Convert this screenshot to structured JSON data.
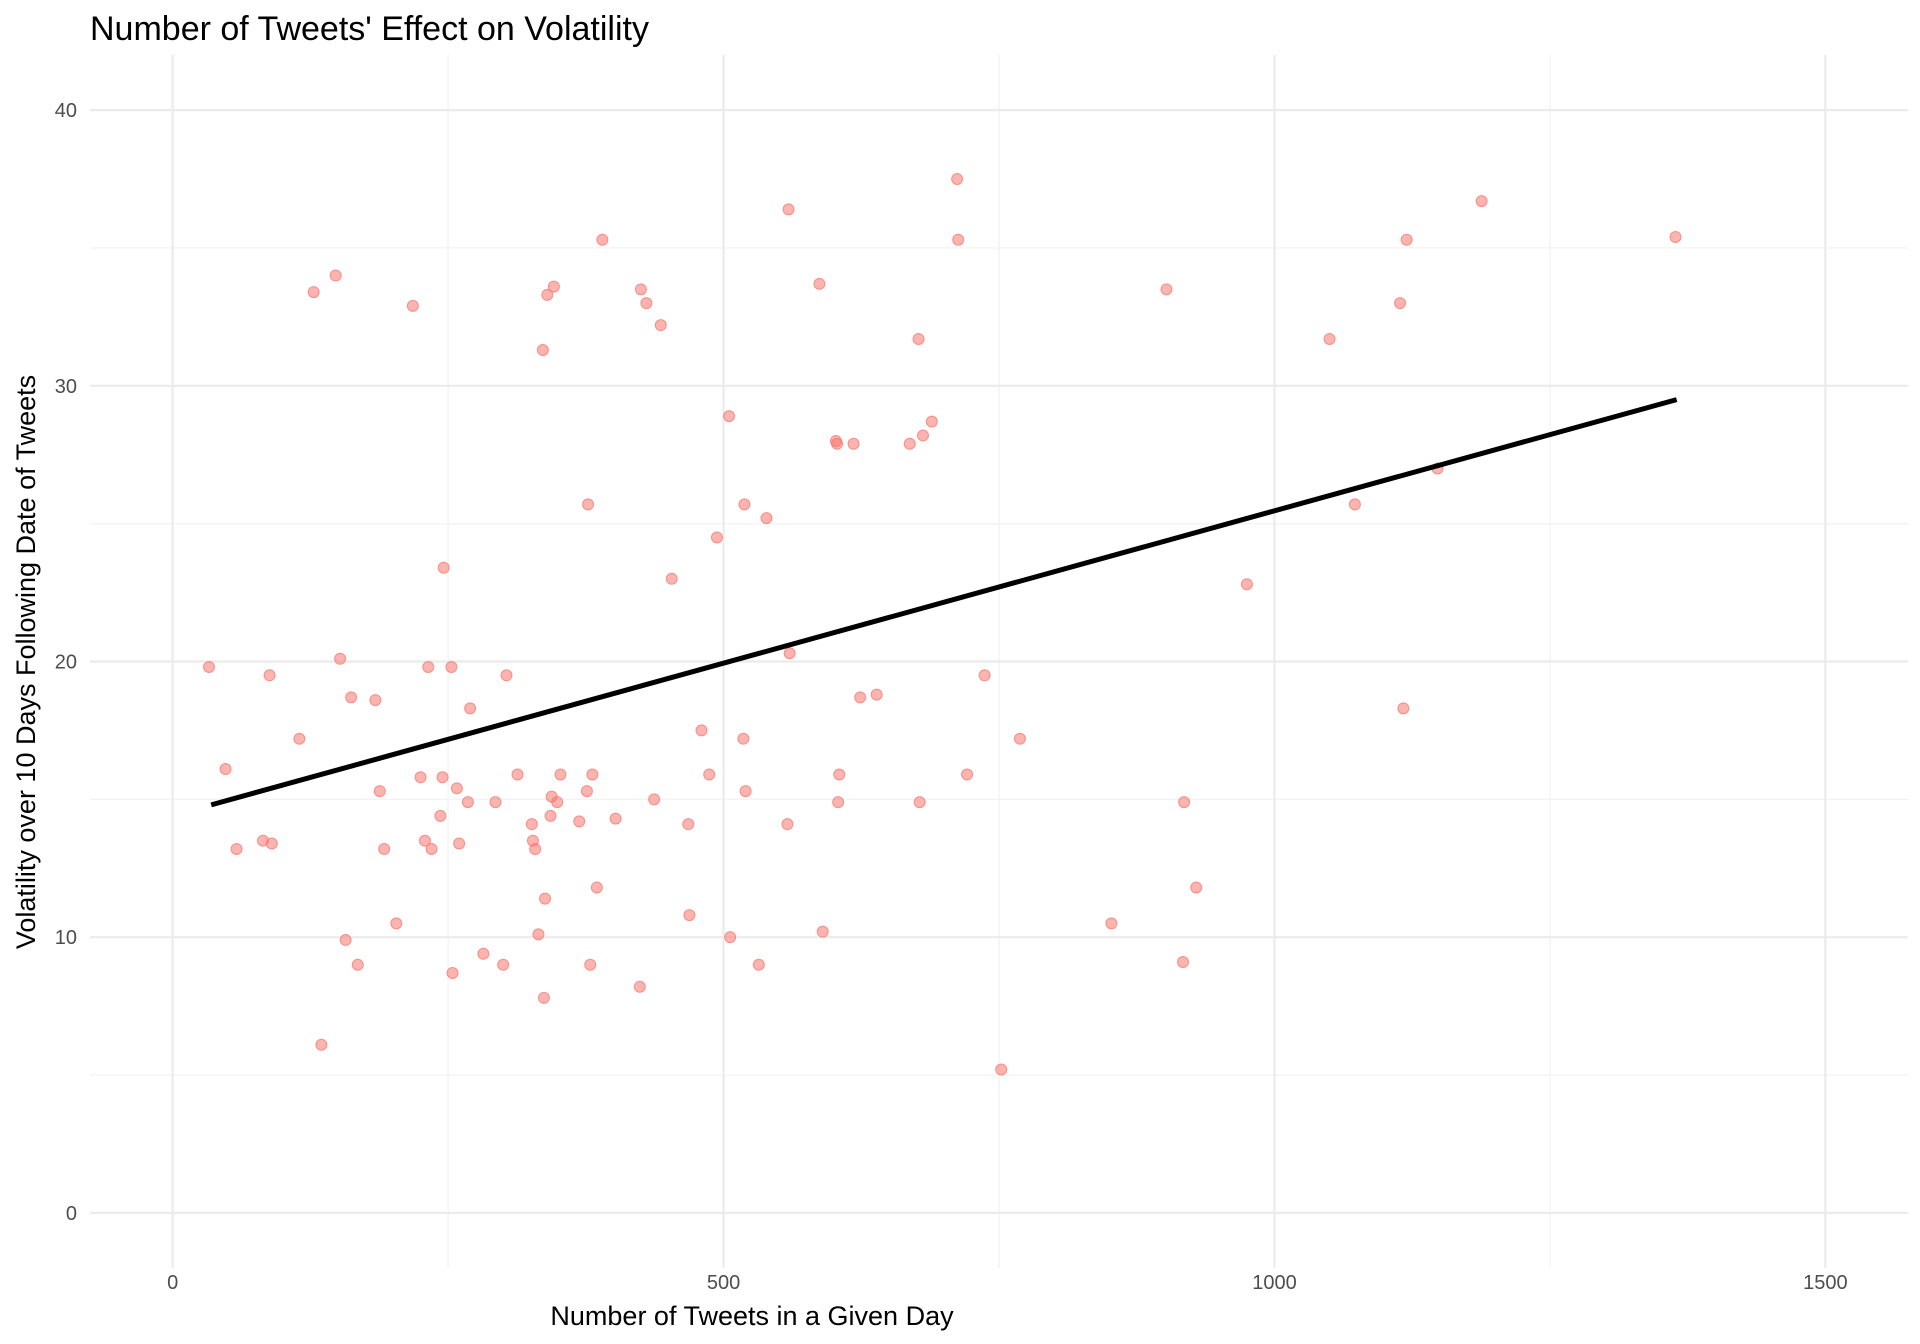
{
  "chart_data": {
    "type": "scatter",
    "title": "Number of Tweets' Effect on Volatility",
    "xlabel": "Number of Tweets in a Given Day",
    "ylabel": "Volatility over 10 Days Following Date of Tweets",
    "xlim": [
      -75,
      1575
    ],
    "ylim": [
      -2,
      42
    ],
    "x_ticks": [
      0,
      500,
      1000,
      1500
    ],
    "y_ticks": [
      0,
      10,
      20,
      30,
      40
    ],
    "grid": true,
    "legend": "none",
    "point_color": "#f8766d",
    "trend_line": {
      "x": [
        35,
        1365
      ],
      "y": [
        14.8,
        29.5
      ],
      "color": "#000000"
    },
    "points": [
      {
        "x": 33,
        "y": 19.8
      },
      {
        "x": 48,
        "y": 16.1
      },
      {
        "x": 58,
        "y": 13.2
      },
      {
        "x": 82,
        "y": 13.5
      },
      {
        "x": 88,
        "y": 19.5
      },
      {
        "x": 90,
        "y": 13.4
      },
      {
        "x": 115,
        "y": 17.2
      },
      {
        "x": 128,
        "y": 33.4
      },
      {
        "x": 135,
        "y": 6.1
      },
      {
        "x": 148,
        "y": 34.0
      },
      {
        "x": 152,
        "y": 20.1
      },
      {
        "x": 157,
        "y": 9.9
      },
      {
        "x": 162,
        "y": 18.7
      },
      {
        "x": 168,
        "y": 9.0
      },
      {
        "x": 184,
        "y": 18.6
      },
      {
        "x": 188,
        "y": 15.3
      },
      {
        "x": 192,
        "y": 13.2
      },
      {
        "x": 203,
        "y": 10.5
      },
      {
        "x": 218,
        "y": 32.9
      },
      {
        "x": 225,
        "y": 15.8
      },
      {
        "x": 229,
        "y": 13.5
      },
      {
        "x": 232,
        "y": 19.8
      },
      {
        "x": 235,
        "y": 13.2
      },
      {
        "x": 243,
        "y": 14.4
      },
      {
        "x": 245,
        "y": 15.8
      },
      {
        "x": 246,
        "y": 23.4
      },
      {
        "x": 253,
        "y": 19.8
      },
      {
        "x": 254,
        "y": 8.7
      },
      {
        "x": 258,
        "y": 15.4
      },
      {
        "x": 260,
        "y": 13.4
      },
      {
        "x": 268,
        "y": 14.9
      },
      {
        "x": 270,
        "y": 18.3
      },
      {
        "x": 282,
        "y": 9.4
      },
      {
        "x": 293,
        "y": 14.9
      },
      {
        "x": 300,
        "y": 9.0
      },
      {
        "x": 303,
        "y": 19.5
      },
      {
        "x": 313,
        "y": 15.9
      },
      {
        "x": 326,
        "y": 14.1
      },
      {
        "x": 327,
        "y": 13.5
      },
      {
        "x": 329,
        "y": 13.2
      },
      {
        "x": 332,
        "y": 10.1
      },
      {
        "x": 336,
        "y": 31.3
      },
      {
        "x": 337,
        "y": 7.8
      },
      {
        "x": 338,
        "y": 11.4
      },
      {
        "x": 340,
        "y": 33.3
      },
      {
        "x": 343,
        "y": 14.4
      },
      {
        "x": 344,
        "y": 15.1
      },
      {
        "x": 346,
        "y": 33.6
      },
      {
        "x": 349,
        "y": 14.9
      },
      {
        "x": 352,
        "y": 15.9
      },
      {
        "x": 369,
        "y": 14.2
      },
      {
        "x": 376,
        "y": 15.3
      },
      {
        "x": 377,
        "y": 25.7
      },
      {
        "x": 379,
        "y": 9.0
      },
      {
        "x": 381,
        "y": 15.9
      },
      {
        "x": 385,
        "y": 11.8
      },
      {
        "x": 390,
        "y": 35.3
      },
      {
        "x": 402,
        "y": 14.3
      },
      {
        "x": 424,
        "y": 8.2
      },
      {
        "x": 425,
        "y": 33.5
      },
      {
        "x": 430,
        "y": 33.0
      },
      {
        "x": 437,
        "y": 15.0
      },
      {
        "x": 443,
        "y": 32.2
      },
      {
        "x": 453,
        "y": 23.0
      },
      {
        "x": 468,
        "y": 14.1
      },
      {
        "x": 469,
        "y": 10.8
      },
      {
        "x": 480,
        "y": 17.5
      },
      {
        "x": 487,
        "y": 15.9
      },
      {
        "x": 494,
        "y": 24.5
      },
      {
        "x": 505,
        "y": 28.9
      },
      {
        "x": 506,
        "y": 10.0
      },
      {
        "x": 518,
        "y": 17.2
      },
      {
        "x": 519,
        "y": 25.7
      },
      {
        "x": 520,
        "y": 15.3
      },
      {
        "x": 532,
        "y": 9.0
      },
      {
        "x": 539,
        "y": 25.2
      },
      {
        "x": 558,
        "y": 14.1
      },
      {
        "x": 559,
        "y": 36.4
      },
      {
        "x": 560,
        "y": 20.3
      },
      {
        "x": 587,
        "y": 33.7
      },
      {
        "x": 590,
        "y": 10.2
      },
      {
        "x": 602,
        "y": 28.0
      },
      {
        "x": 603,
        "y": 27.9
      },
      {
        "x": 604,
        "y": 14.9
      },
      {
        "x": 605,
        "y": 15.9
      },
      {
        "x": 618,
        "y": 27.9
      },
      {
        "x": 624,
        "y": 18.7
      },
      {
        "x": 639,
        "y": 18.8
      },
      {
        "x": 669,
        "y": 27.9
      },
      {
        "x": 677,
        "y": 31.7
      },
      {
        "x": 678,
        "y": 14.9
      },
      {
        "x": 681,
        "y": 28.2
      },
      {
        "x": 689,
        "y": 28.7
      },
      {
        "x": 712,
        "y": 37.5
      },
      {
        "x": 713,
        "y": 35.3
      },
      {
        "x": 721,
        "y": 15.9
      },
      {
        "x": 737,
        "y": 19.5
      },
      {
        "x": 752,
        "y": 5.2
      },
      {
        "x": 769,
        "y": 17.2
      },
      {
        "x": 852,
        "y": 10.5
      },
      {
        "x": 902,
        "y": 33.5
      },
      {
        "x": 917,
        "y": 9.1
      },
      {
        "x": 918,
        "y": 14.9
      },
      {
        "x": 929,
        "y": 11.8
      },
      {
        "x": 975,
        "y": 22.8
      },
      {
        "x": 1050,
        "y": 31.7
      },
      {
        "x": 1073,
        "y": 25.7
      },
      {
        "x": 1114,
        "y": 33.0
      },
      {
        "x": 1117,
        "y": 18.3
      },
      {
        "x": 1120,
        "y": 35.3
      },
      {
        "x": 1148,
        "y": 27.0
      },
      {
        "x": 1188,
        "y": 36.7
      },
      {
        "x": 1364,
        "y": 35.4
      }
    ]
  }
}
